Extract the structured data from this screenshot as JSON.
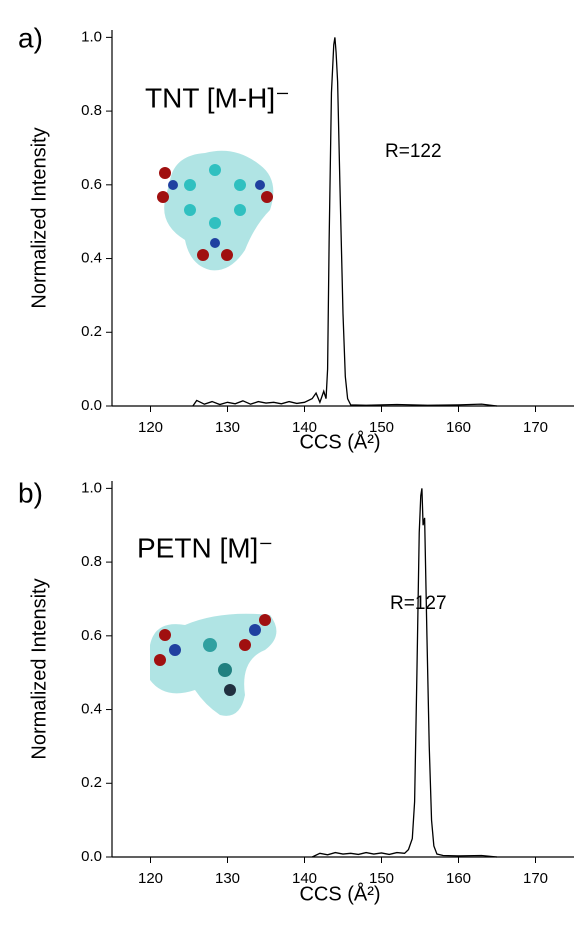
{
  "chart_data": [
    {
      "type": "line",
      "panel_label": "a)",
      "title": "TNT [M-H]⁻",
      "annotation": "R=122",
      "x_label": "CCS (Å²)",
      "y_label": "Normalized Intensity",
      "color": "#000000",
      "x": [
        125.5,
        126,
        127,
        128,
        129,
        130,
        131,
        132,
        133,
        134,
        135,
        136,
        137,
        138,
        139,
        140,
        141,
        141.5,
        142,
        142.5,
        142.8,
        143,
        143.2,
        143.5,
        143.8,
        143.95,
        144.1,
        144.3,
        144.6,
        145,
        145.3,
        145.6,
        146,
        148,
        152,
        156,
        160,
        163,
        165
      ],
      "values": [
        0.0,
        0.015,
        0.005,
        0.012,
        0.004,
        0.01,
        0.006,
        0.014,
        0.005,
        0.012,
        0.008,
        0.01,
        0.006,
        0.012,
        0.007,
        0.01,
        0.02,
        0.035,
        0.01,
        0.04,
        0.02,
        0.1,
        0.45,
        0.85,
        0.98,
        1.0,
        0.96,
        0.88,
        0.6,
        0.25,
        0.08,
        0.02,
        0.003,
        0.002,
        0.004,
        0.002,
        0.003,
        0.005,
        0.0
      ],
      "xlim": [
        115,
        175
      ],
      "ylim": [
        0,
        1.02
      ],
      "xticks": [
        120,
        130,
        140,
        150,
        160,
        170
      ],
      "yticks": [
        {
          "value": 0,
          "label": "0.0"
        },
        0.2,
        0.4,
        0.6,
        0.8,
        {
          "value": 1,
          "label": "1.0"
        }
      ]
    },
    {
      "type": "line",
      "panel_label": "b)",
      "title": "PETN [M]⁻",
      "annotation": "R=127",
      "x_label": "CCS (Å²)",
      "y_label": "Normalized Intensity",
      "color": "#000000",
      "x": [
        141,
        142,
        143,
        144,
        145,
        146,
        147,
        148,
        149,
        150,
        151,
        152,
        153,
        153.5,
        154,
        154.3,
        154.6,
        154.9,
        155.1,
        155.25,
        155.4,
        155.6,
        155.9,
        156.2,
        156.5,
        156.8,
        157.2,
        158,
        160,
        163,
        165
      ],
      "values": [
        0.0,
        0.01,
        0.006,
        0.012,
        0.008,
        0.01,
        0.007,
        0.012,
        0.008,
        0.011,
        0.007,
        0.012,
        0.01,
        0.02,
        0.05,
        0.15,
        0.5,
        0.88,
        0.98,
        1.0,
        0.9,
        0.92,
        0.6,
        0.3,
        0.1,
        0.03,
        0.008,
        0.004,
        0.003,
        0.004,
        0.0
      ],
      "xlim": [
        115,
        175
      ],
      "ylim": [
        0,
        1.02
      ],
      "xticks": [
        120,
        130,
        140,
        150,
        160,
        170
      ],
      "yticks": [
        {
          "value": 0,
          "label": "0.0"
        },
        0.2,
        0.4,
        0.6,
        0.8,
        {
          "value": 1,
          "label": "1.0"
        }
      ]
    }
  ]
}
